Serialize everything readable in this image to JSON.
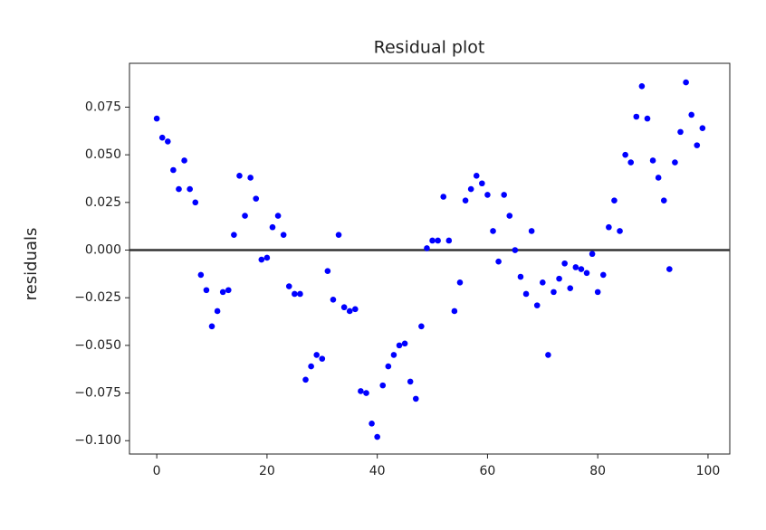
{
  "chart_data": {
    "type": "scatter",
    "title": "Residual plot",
    "y_label": "residuals",
    "x": [
      0,
      1,
      2,
      3,
      4,
      5,
      6,
      7,
      8,
      9,
      10,
      11,
      12,
      13,
      14,
      15,
      16,
      17,
      18,
      19,
      20,
      21,
      22,
      23,
      24,
      25,
      26,
      27,
      28,
      29,
      30,
      31,
      32,
      33,
      34,
      35,
      36,
      37,
      38,
      39,
      40,
      41,
      42,
      43,
      44,
      45,
      46,
      47,
      48,
      49,
      50,
      51,
      52,
      53,
      54,
      55,
      56,
      57,
      58,
      59,
      60,
      61,
      62,
      63,
      64,
      65,
      66,
      67,
      68,
      69,
      70,
      71,
      72,
      73,
      74,
      75,
      76,
      77,
      78,
      79,
      80,
      81,
      82,
      83,
      84,
      85,
      86,
      87,
      88,
      89,
      90,
      91,
      92,
      93,
      94,
      95,
      96,
      97,
      98,
      99
    ],
    "values": [
      0.069,
      0.059,
      0.057,
      0.042,
      0.032,
      0.047,
      0.032,
      0.025,
      -0.013,
      -0.021,
      -0.04,
      -0.032,
      -0.022,
      -0.021,
      0.008,
      0.039,
      0.018,
      0.038,
      0.027,
      -0.005,
      -0.004,
      0.012,
      0.018,
      0.008,
      -0.019,
      -0.023,
      -0.023,
      -0.068,
      -0.061,
      -0.055,
      -0.057,
      -0.011,
      -0.026,
      0.008,
      -0.03,
      -0.032,
      -0.031,
      -0.074,
      -0.075,
      -0.091,
      -0.098,
      -0.071,
      -0.061,
      -0.055,
      -0.05,
      -0.049,
      -0.069,
      -0.078,
      -0.04,
      0.001,
      0.005,
      0.005,
      0.028,
      0.005,
      -0.032,
      -0.017,
      0.026,
      0.032,
      0.039,
      0.035,
      0.029,
      0.01,
      -0.006,
      0.029,
      0.018,
      0.0,
      -0.014,
      -0.023,
      0.01,
      -0.029,
      -0.017,
      -0.055,
      -0.022,
      -0.015,
      -0.007,
      -0.02,
      -0.009,
      -0.01,
      -0.012,
      -0.002,
      -0.022,
      -0.013,
      0.012,
      0.026,
      0.01,
      0.05,
      0.046,
      0.07,
      0.086,
      0.069,
      0.047,
      0.038,
      0.026,
      -0.01,
      0.046,
      0.062,
      0.088,
      0.071,
      0.055,
      0.064
    ],
    "color": "#0000ff",
    "hline": 0,
    "hline_color": "#333333",
    "xlim": [
      -4.95,
      103.95
    ],
    "xticks": [
      0,
      20,
      40,
      60,
      80,
      100
    ],
    "ylim": [
      -0.107,
      0.098
    ],
    "yticks": [
      {
        "value": -0.1,
        "label": "−0.100"
      },
      {
        "value": -0.075,
        "label": "−0.075"
      },
      {
        "value": -0.05,
        "label": "−0.050"
      },
      {
        "value": -0.025,
        "label": "−0.025"
      },
      {
        "value": 0,
        "label": "0.000"
      },
      {
        "value": 0.025,
        "label": "0.025"
      },
      {
        "value": 0.05,
        "label": "0.050"
      },
      {
        "value": 0.075,
        "label": "0.075"
      }
    ],
    "grid": false
  }
}
